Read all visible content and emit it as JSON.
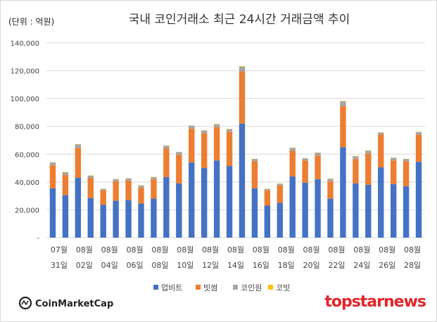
{
  "chart_data": {
    "type": "bar",
    "stacked": true,
    "title": "국내 코인거래소 최근 24시간 거래금액 추이",
    "unit_label": "(단위 : 억원)",
    "ylim": [
      0,
      140000
    ],
    "yticks": [
      0,
      20000,
      40000,
      60000,
      80000,
      100000,
      120000,
      140000
    ],
    "ytick_labels": [
      "-",
      "20,000",
      "40,000",
      "60,000",
      "80,000",
      "100,000",
      "120,000",
      "140,000"
    ],
    "grid": true,
    "legend_position": "bottom",
    "x_label_groups": [
      {
        "top": "07월",
        "bottom": "31일"
      },
      {
        "top": "08월",
        "bottom": "02일"
      },
      {
        "top": "08월",
        "bottom": "04일"
      },
      {
        "top": "08월",
        "bottom": "06일"
      },
      {
        "top": "08월",
        "bottom": "08일"
      },
      {
        "top": "08월",
        "bottom": "10일"
      },
      {
        "top": "08월",
        "bottom": "12일"
      },
      {
        "top": "08월",
        "bottom": "14일"
      },
      {
        "top": "08월",
        "bottom": "16일"
      },
      {
        "top": "08월",
        "bottom": "18일"
      },
      {
        "top": "08월",
        "bottom": "20일"
      },
      {
        "top": "08월",
        "bottom": "22일"
      },
      {
        "top": "08월",
        "bottom": "24일"
      },
      {
        "top": "08월",
        "bottom": "26일"
      },
      {
        "top": "08월",
        "bottom": "28일"
      }
    ],
    "series": [
      {
        "name": "업비트",
        "color": "#4472c4",
        "values": [
          35500,
          30500,
          43000,
          28500,
          23500,
          26500,
          27000,
          24500,
          28000,
          43500,
          39000,
          54000,
          50000,
          55500,
          51500,
          82000,
          35500,
          23000,
          25000,
          44000,
          39500,
          42000,
          28000,
          65000,
          39000,
          38000,
          50500,
          38500,
          37000,
          54500
        ]
      },
      {
        "name": "빗썸",
        "color": "#ed7d31",
        "values": [
          16500,
          14500,
          21500,
          14500,
          10500,
          14000,
          14000,
          11500,
          14000,
          20500,
          20500,
          24500,
          25000,
          24000,
          24500,
          37500,
          19500,
          11000,
          12500,
          18500,
          16000,
          17000,
          12500,
          29500,
          17500,
          22500,
          23500,
          17000,
          18000,
          19500
        ]
      },
      {
        "name": "코인원",
        "color": "#a5a5a5",
        "values": [
          2000,
          2000,
          2500,
          1500,
          1000,
          1500,
          1500,
          1500,
          1500,
          2000,
          2000,
          2000,
          2000,
          2000,
          2000,
          3500,
          1500,
          1000,
          1200,
          2000,
          1500,
          2000,
          1800,
          3500,
          2000,
          2000,
          1500,
          1800,
          1500,
          1800
        ]
      },
      {
        "name": "코빗",
        "color": "#ffc000",
        "values": [
          200,
          200,
          200,
          200,
          200,
          200,
          200,
          200,
          200,
          200,
          200,
          200,
          200,
          200,
          200,
          300,
          200,
          200,
          200,
          200,
          200,
          200,
          200,
          300,
          200,
          200,
          200,
          200,
          200,
          200
        ]
      }
    ]
  },
  "branding": {
    "coinmarketcap": "CoinMarketCap",
    "topstarnews": "topstarnews"
  }
}
